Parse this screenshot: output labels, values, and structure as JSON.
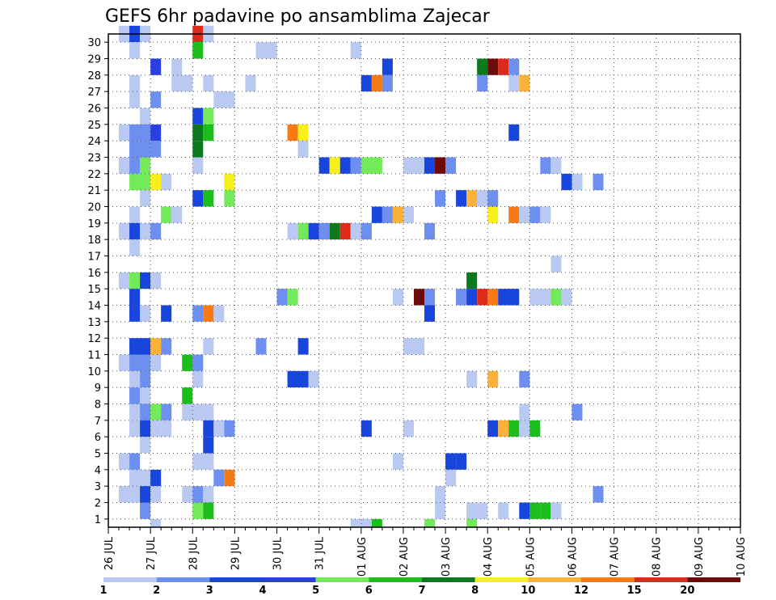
{
  "chart_data": {
    "type": "heatmap",
    "title": "GEFS 6hr padavine po ansamblima Zajecar",
    "xlabel": "",
    "ylabel": "",
    "x_tick_labels": [
      "26 JUL",
      "27 JUL",
      "28 JUL",
      "29 JUL",
      "30 JUL",
      "31 JUL",
      "01 AUG",
      "02 AUG",
      "03 AUG",
      "04 AUG",
      "05 AUG",
      "06 AUG",
      "07 AUG",
      "08 AUG",
      "09 AUG",
      "10 AUG"
    ],
    "y_tick_labels": [
      "1",
      "2",
      "3",
      "4",
      "5",
      "6",
      "7",
      "8",
      "9",
      "10",
      "11",
      "12",
      "13",
      "14",
      "15",
      "16",
      "17",
      "18",
      "19",
      "20",
      "21",
      "22",
      "23",
      "24",
      "25",
      "26",
      "27",
      "28",
      "29",
      "30"
    ],
    "x_range": [
      "26 JUL 00Z",
      "10 AUG 00Z"
    ],
    "x_step_hours": 6,
    "y_range": [
      0,
      30
    ],
    "grid": true,
    "colorbar": {
      "labels": [
        "1",
        "2",
        "3",
        "4",
        "5",
        "6",
        "7",
        "8",
        "10",
        "12",
        "15",
        "20"
      ],
      "colors": [
        "#b9c9f2",
        "#6d8ff0",
        "#1846dd",
        "#2a3fe0",
        "#72ea5a",
        "#1cbe1c",
        "#0c7a1c",
        "#f8f01c",
        "#fbb23a",
        "#f67b14",
        "#dd2a1a",
        "#6f0a0a"
      ]
    },
    "cell_value_encoding": "step index (0-based) in step_thresholds; step 0 = 1-2, step 1 = 2-3, etc.",
    "step_thresholds": [
      1,
      2,
      3,
      4,
      5,
      6,
      7,
      8,
      10,
      12,
      15,
      20
    ],
    "cells": [
      {
        "member": 30,
        "x": [
          [
            1,
            1,
            0
          ],
          [
            2,
            2,
            2
          ],
          [
            3,
            3,
            0
          ],
          [
            8,
            8,
            10
          ],
          [
            9,
            9,
            0
          ]
        ]
      },
      {
        "member": 29,
        "x": [
          [
            2,
            2,
            0
          ],
          [
            8,
            8,
            5
          ],
          [
            14,
            15,
            0
          ],
          [
            23,
            23,
            0
          ]
        ]
      },
      {
        "member": 28,
        "x": [
          [
            4,
            4,
            3
          ],
          [
            6,
            6,
            0
          ],
          [
            26,
            26,
            2
          ],
          [
            35,
            35,
            6
          ],
          [
            36,
            36,
            11
          ],
          [
            37,
            37,
            10
          ],
          [
            38,
            38,
            1
          ]
        ]
      },
      {
        "member": 27,
        "x": [
          [
            2,
            2,
            0
          ],
          [
            6,
            7,
            0
          ],
          [
            9,
            9,
            0
          ],
          [
            13,
            13,
            0
          ],
          [
            24,
            24,
            2
          ],
          [
            25,
            25,
            9
          ],
          [
            26,
            26,
            1
          ],
          [
            35,
            35,
            1
          ],
          [
            38,
            38,
            0
          ],
          [
            39,
            39,
            8
          ]
        ]
      },
      {
        "member": 26,
        "x": [
          [
            2,
            2,
            0
          ],
          [
            4,
            4,
            1
          ],
          [
            10,
            11,
            0
          ]
        ]
      },
      {
        "member": 25,
        "x": [
          [
            3,
            3,
            0
          ],
          [
            8,
            8,
            2
          ],
          [
            9,
            9,
            4
          ]
        ]
      },
      {
        "member": 24,
        "x": [
          [
            1,
            1,
            0
          ],
          [
            2,
            3,
            1
          ],
          [
            4,
            4,
            3
          ],
          [
            8,
            8,
            6
          ],
          [
            9,
            9,
            5
          ],
          [
            17,
            17,
            9
          ],
          [
            18,
            18,
            7
          ],
          [
            38,
            38,
            2
          ]
        ]
      },
      {
        "member": 23,
        "x": [
          [
            2,
            3,
            1
          ],
          [
            4,
            4,
            1
          ],
          [
            8,
            8,
            6
          ],
          [
            18,
            18,
            0
          ]
        ]
      },
      {
        "member": 22,
        "x": [
          [
            1,
            1,
            0
          ],
          [
            2,
            2,
            1
          ],
          [
            3,
            3,
            4
          ],
          [
            8,
            8,
            0
          ],
          [
            20,
            20,
            2
          ],
          [
            21,
            21,
            7
          ],
          [
            22,
            22,
            2
          ],
          [
            23,
            23,
            1
          ],
          [
            24,
            25,
            4
          ],
          [
            28,
            29,
            0
          ],
          [
            30,
            30,
            2
          ],
          [
            31,
            31,
            11
          ],
          [
            32,
            32,
            1
          ],
          [
            41,
            41,
            1
          ],
          [
            42,
            42,
            0
          ]
        ]
      },
      {
        "member": 21,
        "x": [
          [
            2,
            3,
            4
          ],
          [
            4,
            4,
            7
          ],
          [
            5,
            5,
            0
          ],
          [
            11,
            11,
            7
          ],
          [
            43,
            43,
            2
          ],
          [
            44,
            44,
            0
          ],
          [
            46,
            46,
            1
          ]
        ]
      },
      {
        "member": 20,
        "x": [
          [
            3,
            3,
            0
          ],
          [
            8,
            8,
            2
          ],
          [
            9,
            9,
            5
          ],
          [
            11,
            11,
            4
          ],
          [
            31,
            31,
            1
          ],
          [
            33,
            33,
            2
          ],
          [
            34,
            34,
            8
          ],
          [
            35,
            35,
            0
          ],
          [
            36,
            36,
            1
          ]
        ]
      },
      {
        "member": 19,
        "x": [
          [
            2,
            2,
            0
          ],
          [
            5,
            5,
            4
          ],
          [
            6,
            6,
            0
          ],
          [
            25,
            25,
            2
          ],
          [
            26,
            26,
            1
          ],
          [
            27,
            27,
            8
          ],
          [
            28,
            28,
            0
          ],
          [
            36,
            36,
            7
          ],
          [
            38,
            38,
            9
          ],
          [
            39,
            39,
            0
          ],
          [
            40,
            40,
            1
          ],
          [
            41,
            41,
            0
          ]
        ]
      },
      {
        "member": 18,
        "x": [
          [
            1,
            1,
            0
          ],
          [
            2,
            2,
            2
          ],
          [
            3,
            3,
            0
          ],
          [
            4,
            4,
            1
          ],
          [
            17,
            17,
            0
          ],
          [
            18,
            18,
            4
          ],
          [
            19,
            19,
            2
          ],
          [
            20,
            20,
            1
          ],
          [
            21,
            21,
            6
          ],
          [
            22,
            22,
            10
          ],
          [
            23,
            23,
            0
          ],
          [
            24,
            24,
            1
          ],
          [
            30,
            30,
            1
          ]
        ]
      },
      {
        "member": 17,
        "x": [
          [
            2,
            2,
            0
          ]
        ]
      },
      {
        "member": 16,
        "x": [
          [
            42,
            42,
            0
          ]
        ]
      },
      {
        "member": 15,
        "x": [
          [
            1,
            1,
            0
          ],
          [
            2,
            2,
            4
          ],
          [
            3,
            3,
            2
          ],
          [
            4,
            4,
            0
          ],
          [
            34,
            34,
            6
          ]
        ]
      },
      {
        "member": 14,
        "x": [
          [
            2,
            2,
            2
          ],
          [
            16,
            16,
            1
          ],
          [
            17,
            17,
            4
          ],
          [
            27,
            27,
            0
          ],
          [
            29,
            29,
            11
          ],
          [
            30,
            30,
            1
          ],
          [
            33,
            33,
            1
          ],
          [
            34,
            34,
            2
          ],
          [
            35,
            35,
            10
          ],
          [
            36,
            36,
            9
          ],
          [
            37,
            38,
            2
          ],
          [
            40,
            41,
            0
          ],
          [
            42,
            42,
            4
          ],
          [
            43,
            43,
            0
          ]
        ]
      },
      {
        "member": 13,
        "x": [
          [
            2,
            2,
            2
          ],
          [
            3,
            3,
            0
          ],
          [
            5,
            5,
            2
          ],
          [
            8,
            8,
            1
          ],
          [
            9,
            9,
            9
          ],
          [
            10,
            10,
            0
          ],
          [
            30,
            30,
            2
          ]
        ]
      },
      {
        "member": 12,
        "x": []
      },
      {
        "member": 11,
        "x": [
          [
            2,
            3,
            2
          ],
          [
            4,
            4,
            8
          ],
          [
            5,
            5,
            1
          ],
          [
            9,
            9,
            0
          ],
          [
            14,
            14,
            1
          ],
          [
            18,
            18,
            2
          ],
          [
            28,
            29,
            0
          ]
        ]
      },
      {
        "member": 10,
        "x": [
          [
            1,
            1,
            0
          ],
          [
            2,
            3,
            1
          ],
          [
            4,
            4,
            0
          ],
          [
            7,
            7,
            5
          ],
          [
            8,
            8,
            1
          ]
        ]
      },
      {
        "member": 9,
        "x": [
          [
            2,
            2,
            0
          ],
          [
            3,
            3,
            1
          ],
          [
            8,
            8,
            0
          ],
          [
            17,
            18,
            2
          ],
          [
            19,
            19,
            0
          ],
          [
            34,
            34,
            0
          ],
          [
            36,
            36,
            8
          ],
          [
            39,
            39,
            1
          ]
        ]
      },
      {
        "member": 8,
        "x": [
          [
            2,
            2,
            1
          ],
          [
            3,
            3,
            0
          ],
          [
            7,
            7,
            5
          ]
        ]
      },
      {
        "member": 7,
        "x": [
          [
            2,
            2,
            0
          ],
          [
            3,
            3,
            1
          ],
          [
            4,
            4,
            4
          ],
          [
            5,
            5,
            1
          ],
          [
            7,
            9,
            0
          ],
          [
            39,
            39,
            0
          ],
          [
            44,
            44,
            1
          ]
        ]
      },
      {
        "member": 6,
        "x": [
          [
            2,
            2,
            0
          ],
          [
            3,
            3,
            2
          ],
          [
            4,
            4,
            0
          ],
          [
            5,
            5,
            0
          ],
          [
            9,
            9,
            2
          ],
          [
            10,
            10,
            0
          ],
          [
            11,
            11,
            1
          ],
          [
            24,
            24,
            2
          ],
          [
            28,
            28,
            0
          ],
          [
            36,
            36,
            2
          ],
          [
            37,
            37,
            8
          ],
          [
            38,
            38,
            5
          ],
          [
            39,
            39,
            0
          ],
          [
            40,
            40,
            5
          ]
        ]
      },
      {
        "member": 5,
        "x": [
          [
            3,
            3,
            0
          ],
          [
            9,
            9,
            2
          ]
        ]
      },
      {
        "member": 4,
        "x": [
          [
            1,
            1,
            0
          ],
          [
            2,
            2,
            1
          ],
          [
            8,
            9,
            0
          ],
          [
            27,
            27,
            0
          ],
          [
            32,
            32,
            2
          ],
          [
            33,
            33,
            2
          ]
        ]
      },
      {
        "member": 3,
        "x": [
          [
            2,
            2,
            0
          ],
          [
            3,
            3,
            0
          ],
          [
            4,
            4,
            2
          ],
          [
            10,
            10,
            1
          ],
          [
            11,
            11,
            9
          ],
          [
            32,
            32,
            0
          ]
        ]
      },
      {
        "member": 2,
        "x": [
          [
            1,
            2,
            0
          ],
          [
            3,
            3,
            2
          ],
          [
            4,
            4,
            0
          ],
          [
            7,
            7,
            0
          ],
          [
            8,
            8,
            1
          ],
          [
            9,
            9,
            0
          ],
          [
            31,
            31,
            0
          ],
          [
            46,
            46,
            1
          ]
        ]
      },
      {
        "member": 1,
        "x": [
          [
            3,
            3,
            1
          ],
          [
            8,
            8,
            4
          ],
          [
            9,
            9,
            5
          ],
          [
            31,
            31,
            0
          ],
          [
            34,
            35,
            0
          ],
          [
            37,
            37,
            0
          ],
          [
            39,
            39,
            2
          ],
          [
            40,
            40,
            5
          ],
          [
            41,
            41,
            5
          ],
          [
            42,
            42,
            0
          ]
        ]
      },
      {
        "member": 0,
        "x": [
          [
            4,
            4,
            0
          ],
          [
            23,
            23,
            0
          ],
          [
            24,
            24,
            0
          ],
          [
            25,
            25,
            5
          ],
          [
            30,
            30,
            4
          ],
          [
            34,
            34,
            4
          ]
        ]
      }
    ]
  }
}
